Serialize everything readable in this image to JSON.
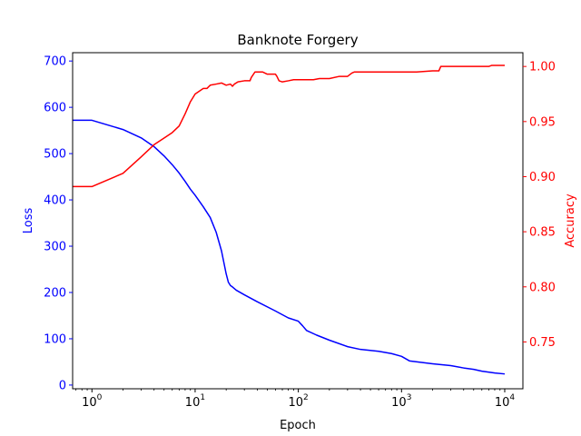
{
  "chart_data": {
    "type": "line",
    "title": "Banknote Forgery",
    "xlabel": "Epoch",
    "x_scale": "log",
    "xlim": [
      0.65,
      15000
    ],
    "x_ticks": [
      {
        "value": 1,
        "base": "10",
        "exp": "0"
      },
      {
        "value": 10,
        "base": "10",
        "exp": "1"
      },
      {
        "value": 100,
        "base": "10",
        "exp": "2"
      },
      {
        "value": 1000,
        "base": "10",
        "exp": "3"
      },
      {
        "value": 10000,
        "base": "10",
        "exp": "4"
      }
    ],
    "left_axis": {
      "label": "Loss",
      "color": "#0000ff",
      "ylim": [
        -8,
        718
      ],
      "ticks": [
        0,
        100,
        200,
        300,
        400,
        500,
        600,
        700
      ],
      "tick_labels": [
        "0",
        "100",
        "200",
        "300",
        "400",
        "500",
        "600",
        "700"
      ]
    },
    "right_axis": {
      "label": "Accuracy",
      "color": "#ff0000",
      "ylim": [
        0.7075,
        1.0125
      ],
      "ticks": [
        0.75,
        0.8,
        0.85,
        0.9,
        0.95,
        1.0
      ],
      "tick_labels": [
        "0.75",
        "0.80",
        "0.85",
        "0.90",
        "0.95",
        "1.00"
      ]
    },
    "grid": false,
    "series": [
      {
        "axis": "left",
        "color": "#0000ff",
        "x": [
          0.65,
          1,
          2,
          3,
          4,
          5,
          6,
          7,
          8,
          9,
          10,
          12,
          14,
          16,
          18,
          20,
          21,
          22,
          23,
          25,
          30,
          40,
          60,
          80,
          100,
          110,
          120,
          150,
          200,
          300,
          400,
          600,
          800,
          1000,
          1200,
          2000,
          3000,
          4000,
          5000,
          6000,
          8000,
          10000
        ],
        "y": [
          572,
          572,
          552,
          534,
          515,
          495,
          476,
          458,
          440,
          423,
          410,
          385,
          362,
          330,
          290,
          240,
          222,
          215,
          212,
          205,
          195,
          180,
          160,
          145,
          138,
          128,
          118,
          108,
          97,
          83,
          77,
          73,
          68,
          62,
          52,
          46,
          42,
          37,
          34,
          30,
          26,
          24
        ]
      },
      {
        "axis": "right",
        "color": "#ff0000",
        "x": [
          0.65,
          1,
          2,
          3,
          4,
          5,
          6,
          7,
          8,
          9,
          10,
          12,
          13,
          14,
          16,
          18,
          20,
          22,
          23,
          24,
          26,
          30,
          34,
          35,
          38,
          45,
          50,
          60,
          62,
          65,
          70,
          80,
          90,
          100,
          120,
          140,
          160,
          200,
          250,
          300,
          330,
          350,
          1000,
          1400,
          2000,
          2300,
          2400,
          5000,
          7000,
          7500,
          10000
        ],
        "y": [
          0.891,
          0.891,
          0.903,
          0.918,
          0.929,
          0.935,
          0.94,
          0.946,
          0.957,
          0.968,
          0.975,
          0.98,
          0.98,
          0.983,
          0.984,
          0.985,
          0.983,
          0.984,
          0.982,
          0.984,
          0.986,
          0.987,
          0.987,
          0.99,
          0.995,
          0.995,
          0.993,
          0.993,
          0.991,
          0.987,
          0.986,
          0.987,
          0.988,
          0.988,
          0.988,
          0.988,
          0.989,
          0.989,
          0.991,
          0.991,
          0.994,
          0.995,
          0.995,
          0.995,
          0.996,
          0.996,
          1.0,
          1.0,
          1.0,
          1.001,
          1.001
        ]
      }
    ]
  }
}
